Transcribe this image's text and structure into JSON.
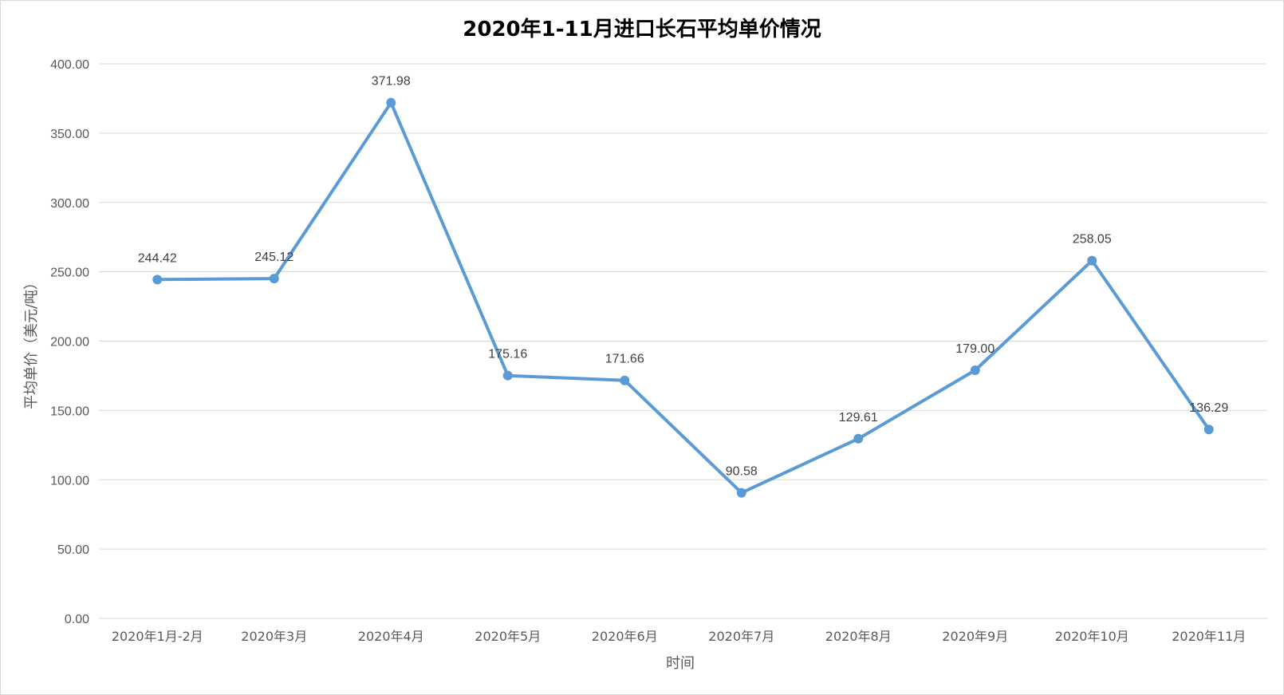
{
  "chart_data": {
    "type": "line",
    "title": "2020年1-11月进口长石平均单价情况",
    "xlabel": "时间",
    "ylabel": "平均单价（美元/吨）",
    "ylim": [
      0,
      400
    ],
    "y_tick_labels": [
      "0.00",
      "50.00",
      "100.00",
      "150.00",
      "200.00",
      "250.00",
      "300.00",
      "350.00",
      "400.00"
    ],
    "categories": [
      "2020年1月-2月",
      "2020年3月",
      "2020年4月",
      "2020年5月",
      "2020年6月",
      "2020年7月",
      "2020年8月",
      "2020年9月",
      "2020年10月",
      "2020年11月"
    ],
    "series": [
      {
        "values": [
          244.42,
          245.12,
          371.98,
          175.16,
          171.66,
          90.58,
          129.61,
          179.0,
          258.05,
          136.29
        ],
        "labels": [
          "244.42",
          "245.12",
          "371.98",
          "175.16",
          "171.66",
          "90.58",
          "129.61",
          "179.00",
          "258.05",
          "136.29"
        ],
        "color": "#5b9bd5"
      }
    ],
    "grid": true,
    "legend": "none"
  }
}
